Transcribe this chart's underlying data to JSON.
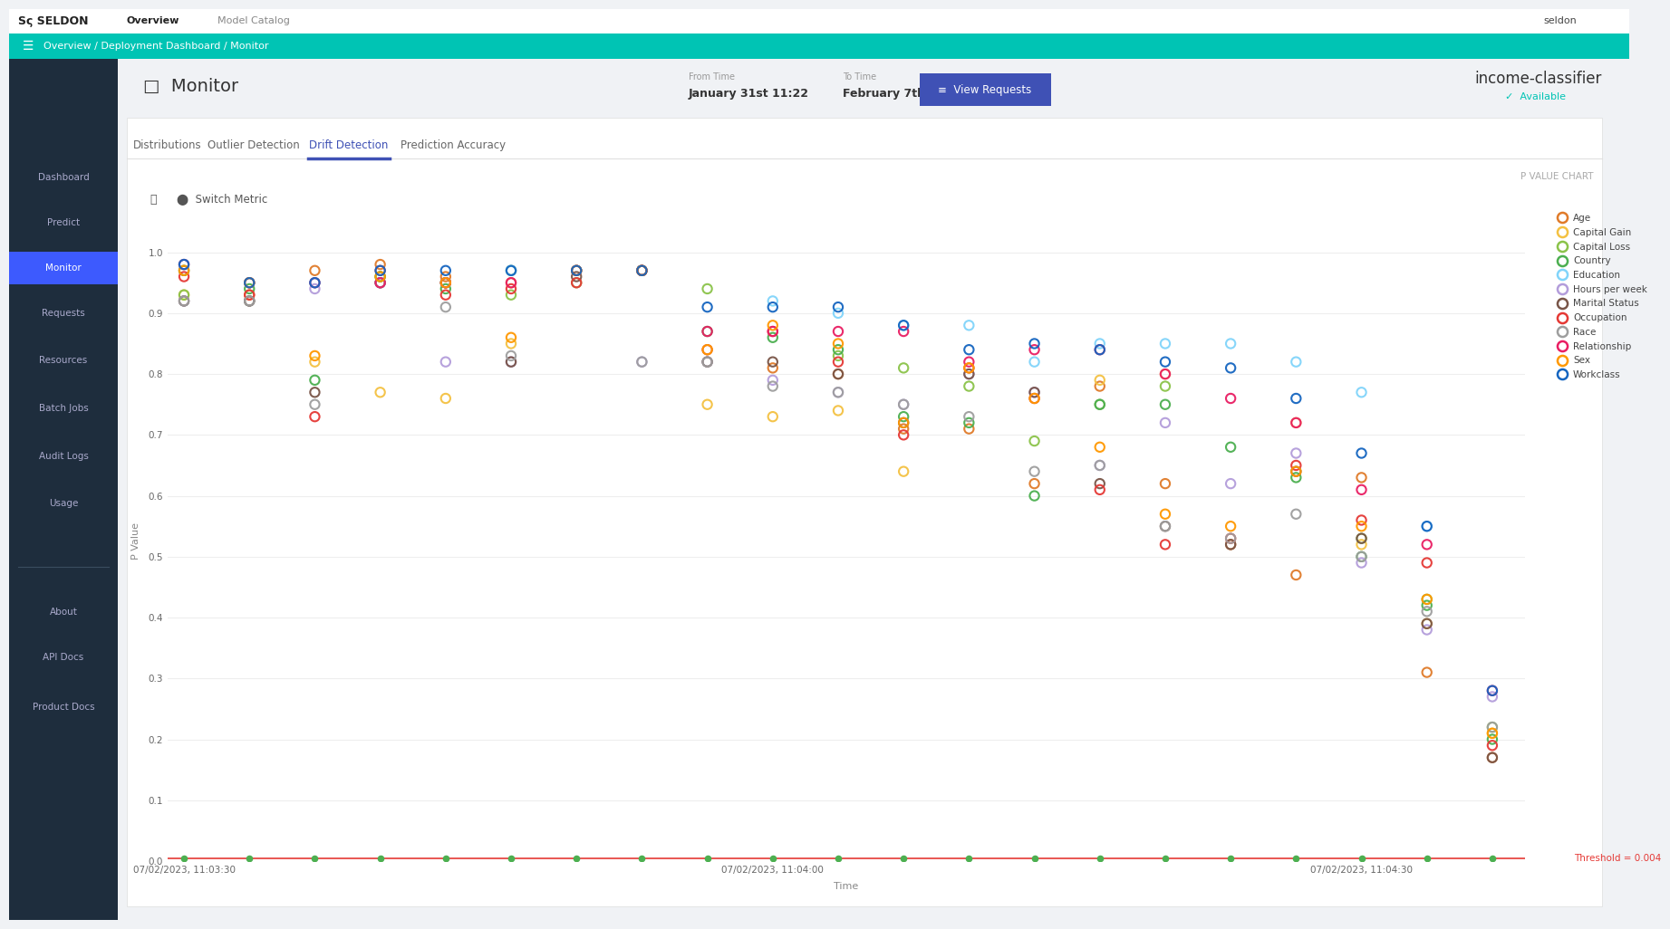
{
  "title": "P VALUE CHART",
  "xlabel": "Time",
  "ylabel": "P Value",
  "threshold": 0.004,
  "threshold_label": "Threshold = 0.004",
  "ylim": [
    0,
    1.05
  ],
  "features": [
    {
      "name": "Age",
      "color": "#e07b2a"
    },
    {
      "name": "Capital Gain",
      "color": "#f4c142"
    },
    {
      "name": "Capital Loss",
      "color": "#8bc34a"
    },
    {
      "name": "Country",
      "color": "#4caf50"
    },
    {
      "name": "Education",
      "color": "#81d4fa"
    },
    {
      "name": "Hours per week",
      "color": "#b39ddb"
    },
    {
      "name": "Marital Status",
      "color": "#795548"
    },
    {
      "name": "Occupation",
      "color": "#e53935"
    },
    {
      "name": "Race",
      "color": "#9e9e9e"
    },
    {
      "name": "Relationship",
      "color": "#e91e63"
    },
    {
      "name": "Sex",
      "color": "#ff9800"
    },
    {
      "name": "Workclass",
      "color": "#1565c0"
    }
  ],
  "time_ticks": [
    "07/02/2023, 11:03:30",
    "07/02/2023, 11:04:00",
    "07/02/2023, 11:04:30"
  ],
  "x_positions": [
    0,
    2,
    4,
    6,
    8,
    10,
    12,
    14,
    16,
    18,
    20,
    22,
    24,
    26,
    28,
    30,
    32,
    34,
    36,
    38,
    40
  ],
  "scatter_data": {
    "Age": {
      "x": [
        0,
        2,
        4,
        6,
        8,
        10,
        12,
        14,
        18,
        20,
        22,
        24,
        26,
        28,
        30,
        32,
        34,
        36,
        38,
        40
      ],
      "y": [
        0.97,
        0.93,
        0.97,
        0.98,
        0.96,
        0.95,
        0.97,
        0.97,
        0.81,
        0.8,
        0.71,
        0.71,
        0.62,
        0.78,
        0.62,
        0.52,
        0.47,
        0.63,
        0.31,
        0.17
      ]
    },
    "Capital Gain": {
      "x": [
        0,
        2,
        4,
        6,
        8,
        10,
        12,
        16,
        18,
        20,
        22,
        28,
        30,
        34,
        36,
        38,
        40
      ],
      "y": [
        0.93,
        0.95,
        0.82,
        0.77,
        0.76,
        0.85,
        0.97,
        0.75,
        0.73,
        0.74,
        0.64,
        0.79,
        0.8,
        0.72,
        0.52,
        0.39,
        0.21
      ]
    },
    "Capital Loss": {
      "x": [
        0,
        2,
        6,
        8,
        10,
        12,
        14,
        16,
        20,
        22,
        24,
        26,
        28,
        30,
        36,
        38,
        40
      ],
      "y": [
        0.93,
        0.92,
        0.96,
        0.95,
        0.93,
        0.95,
        0.97,
        0.94,
        0.83,
        0.81,
        0.78,
        0.69,
        0.75,
        0.78,
        0.53,
        0.43,
        0.22
      ]
    },
    "Country": {
      "x": [
        0,
        2,
        4,
        6,
        8,
        10,
        14,
        16,
        18,
        20,
        22,
        24,
        26,
        28,
        30,
        32,
        34,
        36,
        38,
        40
      ],
      "y": [
        0.97,
        0.94,
        0.79,
        0.96,
        0.94,
        0.97,
        0.97,
        0.87,
        0.86,
        0.84,
        0.73,
        0.72,
        0.6,
        0.75,
        0.75,
        0.68,
        0.63,
        0.5,
        0.42,
        0.2
      ]
    },
    "Education": {
      "x": [
        0,
        2,
        4,
        6,
        8,
        10,
        12,
        14,
        18,
        20,
        22,
        24,
        26,
        28,
        30,
        32,
        34,
        36,
        38
      ],
      "y": [
        0.98,
        0.95,
        0.95,
        0.95,
        0.95,
        0.97,
        0.97,
        0.97,
        0.92,
        0.9,
        0.88,
        0.88,
        0.82,
        0.85,
        0.85,
        0.85,
        0.82,
        0.77,
        0.55
      ]
    },
    "Hours per week": {
      "x": [
        0,
        2,
        4,
        6,
        8,
        10,
        14,
        16,
        18,
        20,
        22,
        24,
        26,
        28,
        30,
        32,
        34,
        36,
        38,
        40
      ],
      "y": [
        0.92,
        0.92,
        0.94,
        0.95,
        0.82,
        0.82,
        0.82,
        0.82,
        0.79,
        0.77,
        0.75,
        0.8,
        0.77,
        0.65,
        0.72,
        0.62,
        0.67,
        0.49,
        0.38,
        0.27
      ]
    },
    "Marital Status": {
      "x": [
        0,
        2,
        4,
        6,
        8,
        10,
        12,
        14,
        16,
        18,
        20,
        22,
        24,
        26,
        28,
        30,
        32,
        34,
        36,
        38,
        40
      ],
      "y": [
        0.92,
        0.92,
        0.77,
        0.95,
        0.95,
        0.82,
        0.96,
        0.97,
        0.82,
        0.82,
        0.8,
        0.72,
        0.8,
        0.77,
        0.62,
        0.55,
        0.52,
        0.64,
        0.53,
        0.39,
        0.17
      ]
    },
    "Occupation": {
      "x": [
        0,
        2,
        4,
        6,
        8,
        10,
        12,
        14,
        16,
        18,
        20,
        22,
        24,
        26,
        28,
        30,
        32,
        34,
        36,
        38,
        40
      ],
      "y": [
        0.96,
        0.93,
        0.73,
        0.97,
        0.93,
        0.94,
        0.95,
        0.97,
        0.84,
        0.87,
        0.82,
        0.7,
        0.81,
        0.76,
        0.61,
        0.52,
        0.53,
        0.65,
        0.56,
        0.49,
        0.19
      ]
    },
    "Race": {
      "x": [
        0,
        2,
        4,
        6,
        8,
        10,
        14,
        16,
        18,
        20,
        22,
        24,
        26,
        28,
        30,
        32,
        34,
        36,
        38,
        40
      ],
      "y": [
        0.92,
        0.92,
        0.75,
        0.95,
        0.91,
        0.83,
        0.82,
        0.82,
        0.78,
        0.77,
        0.75,
        0.73,
        0.64,
        0.65,
        0.55,
        0.53,
        0.57,
        0.5,
        0.41,
        0.22
      ]
    },
    "Relationship": {
      "x": [
        0,
        2,
        4,
        6,
        8,
        10,
        12,
        14,
        16,
        18,
        20,
        22,
        24,
        26,
        28,
        30,
        32,
        34,
        36,
        38,
        40
      ],
      "y": [
        0.98,
        0.95,
        0.95,
        0.95,
        0.95,
        0.95,
        0.97,
        0.97,
        0.87,
        0.87,
        0.87,
        0.87,
        0.82,
        0.84,
        0.84,
        0.8,
        0.76,
        0.72,
        0.61,
        0.52,
        0.28
      ]
    },
    "Sex": {
      "x": [
        0,
        2,
        4,
        6,
        8,
        10,
        12,
        14,
        16,
        18,
        20,
        22,
        24,
        26,
        28,
        30,
        32,
        34,
        36,
        38,
        40
      ],
      "y": [
        0.97,
        0.95,
        0.83,
        0.96,
        0.95,
        0.86,
        0.97,
        0.97,
        0.84,
        0.88,
        0.85,
        0.72,
        0.81,
        0.76,
        0.68,
        0.57,
        0.55,
        0.64,
        0.55,
        0.43,
        0.21
      ]
    },
    "Workclass": {
      "x": [
        0,
        2,
        4,
        6,
        8,
        10,
        12,
        14,
        16,
        18,
        20,
        22,
        24,
        26,
        28,
        30,
        32,
        34,
        36,
        38,
        40
      ],
      "y": [
        0.98,
        0.95,
        0.95,
        0.97,
        0.97,
        0.97,
        0.97,
        0.97,
        0.91,
        0.91,
        0.91,
        0.88,
        0.84,
        0.85,
        0.84,
        0.82,
        0.81,
        0.76,
        0.67,
        0.55,
        0.28
      ]
    }
  },
  "yticks": [
    0,
    0.1,
    0.2,
    0.3,
    0.4,
    0.5,
    0.6,
    0.7,
    0.8,
    0.9,
    1
  ],
  "xtick_positions": [
    0,
    18,
    36
  ],
  "legend_colors": {
    "Age": "#e07b2a",
    "Capital Gain": "#f4c142",
    "Capital Loss": "#8bc34a",
    "Country": "#4caf50",
    "Education": "#81d4fa",
    "Hours per week": "#b39ddb",
    "Marital Status": "#795548",
    "Occupation": "#e53935",
    "Race": "#9e9e9e",
    "Relationship": "#e91e63",
    "Sex": "#ff9800",
    "Workclass": "#1565c0"
  },
  "nav_bg": "#ffffff",
  "teal_bg": "#00c4b4",
  "sidebar_bg": "#1e2d3d",
  "sidebar_active_bg": "#3d5afe",
  "content_bg": "#f0f2f5",
  "white_panel": "#ffffff",
  "tab_active_color": "#3f51b5",
  "tab_inactive_color": "#666666"
}
